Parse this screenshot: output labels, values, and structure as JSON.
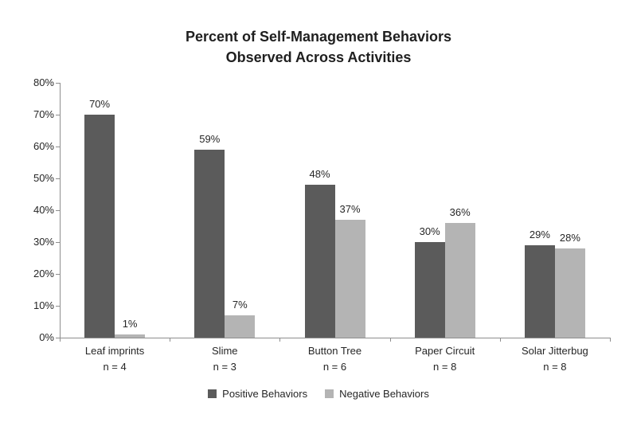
{
  "chart_data": {
    "type": "bar",
    "title_line1": "Percent of Self-Management Behaviors",
    "title_line2": "Observed Across Activities",
    "categories": [
      {
        "label": "Leaf imprints",
        "n_label": "n = 4"
      },
      {
        "label": "Slime",
        "n_label": "n = 3"
      },
      {
        "label": "Button Tree",
        "n_label": "n = 6"
      },
      {
        "label": "Paper Circuit",
        "n_label": "n = 8"
      },
      {
        "label": "Solar Jitterbug",
        "n_label": "n = 8"
      }
    ],
    "series": [
      {
        "name": "Positive Behaviors",
        "color": "#5b5b5b",
        "values": [
          70,
          59,
          48,
          30,
          29
        ],
        "labels": [
          "70%",
          "59%",
          "48%",
          "30%",
          "29%"
        ]
      },
      {
        "name": "Negative Behaviors",
        "color": "#b4b4b4",
        "values": [
          1,
          7,
          37,
          36,
          28
        ],
        "labels": [
          "1%",
          "7%",
          "37%",
          "36%",
          "28%"
        ]
      }
    ],
    "y_axis": {
      "min": 0,
      "max": 80,
      "step": 10,
      "ticks": [
        "80%",
        "70%",
        "60%",
        "50%",
        "40%",
        "30%",
        "20%",
        "10%",
        "0%"
      ]
    },
    "legend": [
      {
        "label": "Positive Behaviors",
        "color": "#5b5b5b"
      },
      {
        "label": "Negative Behaviors",
        "color": "#b4b4b4"
      }
    ],
    "axis_color": "#8e8e8e",
    "grid": "off",
    "legend_position": "bottom"
  }
}
